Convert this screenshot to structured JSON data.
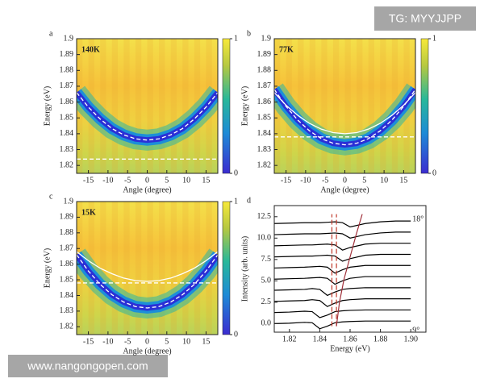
{
  "chart_data": [
    {
      "type": "heatmap",
      "panel": "a",
      "label": "140K",
      "xlabel": "Angle (degree)",
      "ylabel": "Energy (eV)",
      "xlim": [
        -18,
        18
      ],
      "ylim": [
        1.815,
        1.9
      ],
      "xticks": [
        -15,
        -10,
        -5,
        0,
        5,
        10,
        15
      ],
      "yticks": [
        1.82,
        1.83,
        1.84,
        1.85,
        1.86,
        1.87,
        1.88,
        1.89,
        1.9
      ],
      "colorbar_ticks": [
        0,
        1
      ],
      "series": [
        {
          "color": "#ffffff",
          "dash": true,
          "band": "#2b2fd6",
          "x": [
            -18,
            -15,
            -12,
            -9,
            -6,
            -3,
            0,
            3,
            6,
            9,
            12,
            15,
            18
          ],
          "values": [
            1.866,
            1.8568,
            1.8493,
            1.8433,
            1.8393,
            1.8368,
            1.836,
            1.8368,
            1.8393,
            1.8433,
            1.8493,
            1.8568,
            1.866
          ]
        },
        {
          "color": "#ffffff",
          "dash": true,
          "x": [
            -18,
            18
          ],
          "values": [
            1.824,
            1.824
          ]
        }
      ]
    },
    {
      "type": "heatmap",
      "panel": "b",
      "label": "77K",
      "xlabel": "Angle (degree)",
      "ylabel": "Energy (eV)",
      "xlim": [
        -18,
        18
      ],
      "ylim": [
        1.815,
        1.9
      ],
      "xticks": [
        -15,
        -10,
        -5,
        0,
        5,
        10,
        15
      ],
      "yticks": [
        1.82,
        1.83,
        1.84,
        1.85,
        1.86,
        1.87,
        1.88,
        1.89,
        1.9
      ],
      "colorbar_ticks": [
        0,
        1
      ],
      "series": [
        {
          "color": "#ffffff",
          "dash": true,
          "band": "#2b2fd6",
          "x": [
            -18,
            -15,
            -12,
            -9,
            -6,
            -3,
            0,
            3,
            6,
            9,
            12,
            15,
            18
          ],
          "values": [
            1.868,
            1.8573,
            1.8486,
            1.8418,
            1.8369,
            1.834,
            1.833,
            1.834,
            1.8369,
            1.8418,
            1.8486,
            1.8573,
            1.868
          ]
        },
        {
          "color": "#ffffff",
          "dash": false,
          "x": [
            -18,
            -15,
            -12,
            -9,
            -6,
            -3,
            0,
            3,
            6,
            9,
            12,
            15,
            18
          ],
          "values": [
            1.866,
            1.858,
            1.8516,
            1.8465,
            1.8429,
            1.8407,
            1.84,
            1.8407,
            1.8429,
            1.8465,
            1.8516,
            1.858,
            1.866
          ]
        },
        {
          "color": "#ffffff",
          "dash": true,
          "x": [
            -18,
            18
          ],
          "values": [
            1.838,
            1.838
          ]
        }
      ]
    },
    {
      "type": "heatmap",
      "panel": "c",
      "label": "15K",
      "xlabel": "Angle (degree)",
      "ylabel": "Energy (eV)",
      "xlim": [
        -18,
        18
      ],
      "ylim": [
        1.815,
        1.9
      ],
      "xticks": [
        -15,
        -10,
        -5,
        0,
        5,
        10,
        15
      ],
      "yticks": [
        1.82,
        1.83,
        1.84,
        1.85,
        1.86,
        1.87,
        1.88,
        1.89,
        1.9
      ],
      "colorbar_ticks": [
        0,
        1
      ],
      "series": [
        {
          "color": "#ffffff",
          "dash": true,
          "band": "#2b2fd6",
          "x": [
            -18,
            -15,
            -12,
            -9,
            -6,
            -3,
            0,
            3,
            6,
            9,
            12,
            15,
            18
          ],
          "values": [
            1.866,
            1.8556,
            1.8471,
            1.8405,
            1.8358,
            1.8329,
            1.832,
            1.8329,
            1.8358,
            1.8405,
            1.8471,
            1.8556,
            1.866
          ]
        },
        {
          "color": "#ffffff",
          "dash": false,
          "x": [
            -18,
            -15,
            -12,
            -9,
            -6,
            -3,
            0,
            3,
            6,
            9,
            12,
            15,
            18
          ],
          "values": [
            1.868,
            1.8622,
            1.8574,
            1.8539,
            1.8511,
            1.8495,
            1.849,
            1.8495,
            1.8511,
            1.8539,
            1.8574,
            1.8622,
            1.868
          ]
        },
        {
          "color": "#ffffff",
          "dash": true,
          "x": [
            -18,
            18
          ],
          "values": [
            1.848,
            1.848
          ]
        }
      ]
    },
    {
      "type": "line",
      "panel": "d",
      "xlabel": "Energy (eV)",
      "ylabel": "Intensity (arb. units)",
      "xlim": [
        1.81,
        1.91
      ],
      "ylim": [
        -1,
        13.8
      ],
      "xticks": [
        1.82,
        1.84,
        1.86,
        1.88,
        {
          "value": 1.9,
          "label": "1.90"
        }
      ],
      "yticks": [
        {
          "value": 0,
          "label": "0.0"
        },
        2.5,
        {
          "value": 5,
          "label": "5.0"
        },
        7.5,
        {
          "value": 10,
          "label": "10.0"
        },
        12.5
      ],
      "x": [
        1.81,
        1.82,
        1.83,
        1.835,
        1.84,
        1.845,
        1.85,
        1.855,
        1.86,
        1.87,
        1.88,
        1.89,
        1.9
      ],
      "series": [
        {
          "color": "#000000",
          "label": "9°",
          "values": [
            0,
            0.05,
            0.15,
            0.1,
            -0.6,
            -0.3,
            0.1,
            0.2,
            0.25,
            0.3,
            0.3,
            0.3,
            0.3
          ]
        },
        {
          "color": "#000000",
          "values": [
            1.3,
            1.35,
            1.45,
            1.4,
            0.7,
            1.0,
            1.4,
            1.5,
            1.55,
            1.6,
            1.6,
            1.6,
            1.6
          ]
        },
        {
          "color": "#000000",
          "values": [
            2.6,
            2.65,
            2.7,
            2.8,
            2.7,
            2.0,
            2.4,
            2.7,
            2.8,
            2.9,
            2.9,
            2.9,
            2.9
          ]
        },
        {
          "color": "#000000",
          "values": [
            3.9,
            3.95,
            4.0,
            4.1,
            4.0,
            3.3,
            3.7,
            4.0,
            4.1,
            4.2,
            4.2,
            4.2,
            4.2
          ]
        },
        {
          "color": "#000000",
          "values": [
            5.2,
            5.25,
            5.3,
            5.35,
            5.4,
            5.3,
            4.6,
            5.0,
            5.3,
            5.5,
            5.5,
            5.5,
            5.5
          ]
        },
        {
          "color": "#000000",
          "values": [
            6.5,
            6.55,
            6.6,
            6.65,
            6.7,
            6.6,
            5.9,
            6.3,
            6.6,
            6.8,
            6.8,
            6.8,
            6.8
          ]
        },
        {
          "color": "#000000",
          "values": [
            7.8,
            7.85,
            7.9,
            7.9,
            7.95,
            8.0,
            7.9,
            7.3,
            7.6,
            8.0,
            8.1,
            8.1,
            8.1
          ]
        },
        {
          "color": "#000000",
          "values": [
            9.1,
            9.15,
            9.2,
            9.2,
            9.25,
            9.3,
            9.2,
            8.6,
            8.9,
            9.3,
            9.4,
            9.4,
            9.4
          ]
        },
        {
          "color": "#000000",
          "values": [
            10.4,
            10.45,
            10.5,
            10.5,
            10.5,
            10.55,
            10.6,
            10.5,
            10.0,
            10.4,
            10.6,
            10.7,
            10.7
          ]
        },
        {
          "color": "#000000",
          "label": "18°",
          "values": [
            11.7,
            11.75,
            11.8,
            11.8,
            11.8,
            11.85,
            11.9,
            11.8,
            11.3,
            11.7,
            11.9,
            12.0,
            12.0
          ]
        },
        {
          "color": "#c0392b",
          "dash": true,
          "x": [
            1.848,
            1.848
          ],
          "values": [
            -0.3,
            12.8
          ]
        },
        {
          "color": "#c0392b",
          "dash": true,
          "x": [
            1.851,
            1.851
          ],
          "values": [
            -0.3,
            12.8
          ]
        },
        {
          "color": "#a0303a",
          "dash": false,
          "x": [
            1.851,
            1.853,
            1.856,
            1.86,
            1.864,
            1.868
          ],
          "values": [
            -0.3,
            2.5,
            5.2,
            7.8,
            10.4,
            12.8
          ]
        }
      ]
    }
  ],
  "watermarks": {
    "top": "TG: MYYJJPP",
    "bottom": "www.nangongopen.com"
  }
}
